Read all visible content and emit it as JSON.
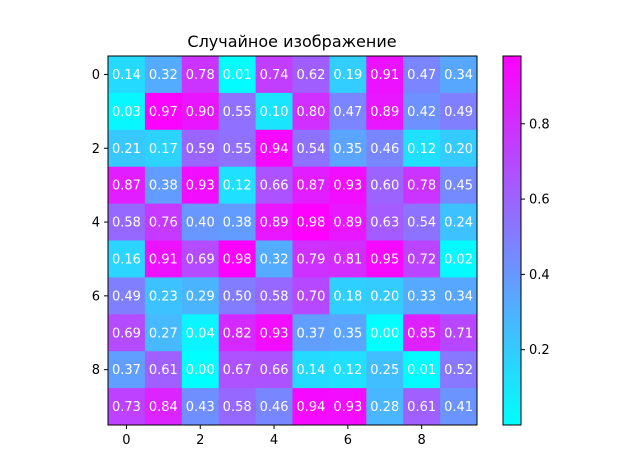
{
  "chart_data": {
    "type": "heatmap",
    "title": "Случайное изображение",
    "colormap": "cool",
    "colormap_endpoints": [
      "#00ffff",
      "#ff00ff"
    ],
    "value_range": [
      0.0,
      0.98
    ],
    "x_ticks": [
      "0",
      "2",
      "4",
      "6",
      "8"
    ],
    "y_ticks": [
      "0",
      "2",
      "4",
      "6",
      "8"
    ],
    "colorbar_ticks": [
      "0.2",
      "0.4",
      "0.6",
      "0.8"
    ],
    "values": [
      [
        0.14,
        0.32,
        0.78,
        0.01,
        0.74,
        0.62,
        0.19,
        0.91,
        0.47,
        0.34
      ],
      [
        0.03,
        0.97,
        0.9,
        0.55,
        0.1,
        0.8,
        0.47,
        0.89,
        0.42,
        0.49
      ],
      [
        0.21,
        0.17,
        0.59,
        0.55,
        0.94,
        0.54,
        0.35,
        0.46,
        0.12,
        0.2
      ],
      [
        0.87,
        0.38,
        0.93,
        0.12,
        0.66,
        0.87,
        0.93,
        0.6,
        0.78,
        0.45
      ],
      [
        0.58,
        0.76,
        0.4,
        0.38,
        0.89,
        0.98,
        0.89,
        0.63,
        0.54,
        0.24
      ],
      [
        0.16,
        0.91,
        0.69,
        0.98,
        0.32,
        0.79,
        0.81,
        0.95,
        0.72,
        0.02
      ],
      [
        0.49,
        0.23,
        0.29,
        0.5,
        0.58,
        0.7,
        0.18,
        0.2,
        0.33,
        0.34
      ],
      [
        0.69,
        0.27,
        0.04,
        0.82,
        0.93,
        0.37,
        0.35,
        0.0,
        0.85,
        0.71
      ],
      [
        0.37,
        0.61,
        0.0,
        0.67,
        0.66,
        0.14,
        0.12,
        0.25,
        0.01,
        0.52
      ],
      [
        0.73,
        0.84,
        0.43,
        0.58,
        0.46,
        0.94,
        0.93,
        0.28,
        0.61,
        0.41
      ]
    ]
  }
}
